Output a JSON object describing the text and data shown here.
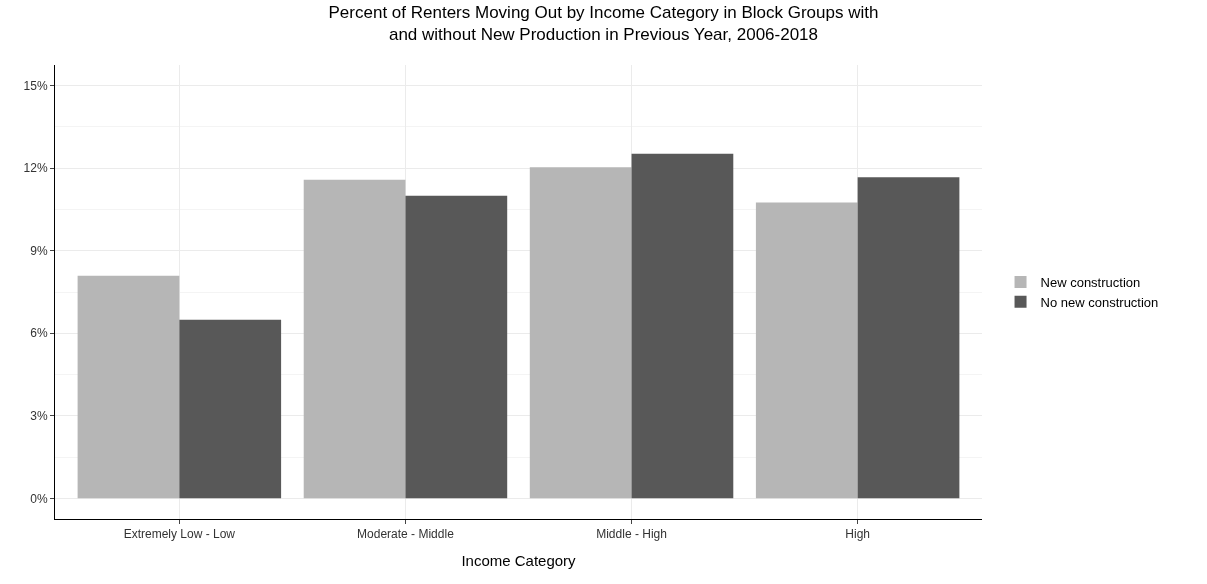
{
  "chart_data": {
    "type": "bar",
    "title": "Percent of Renters Moving Out by Income Category in Block Groups with\nand without New Production in Previous Year, 2006-2018",
    "xlabel": "Income Category",
    "categories": [
      "Extremely Low - Low",
      "Moderate - Middle",
      "Middle - High",
      "High"
    ],
    "series": [
      {
        "name": "New construction",
        "color": "#b6b6b6",
        "values": [
          8.09,
          11.58,
          12.03,
          10.75
        ]
      },
      {
        "name": "No new construction",
        "color": "#585858",
        "values": [
          6.49,
          11.0,
          12.52,
          11.67
        ]
      }
    ],
    "ylim": [
      -0.75,
      15.75
    ],
    "yticks": [
      {
        "value": 0,
        "label": "0%"
      },
      {
        "value": 3,
        "label": "3%"
      },
      {
        "value": 6,
        "label": "6%"
      },
      {
        "value": 9,
        "label": "9%"
      },
      {
        "value": 12,
        "label": "12%"
      },
      {
        "value": 15,
        "label": "15%"
      }
    ],
    "grid": true,
    "legend": "right"
  }
}
